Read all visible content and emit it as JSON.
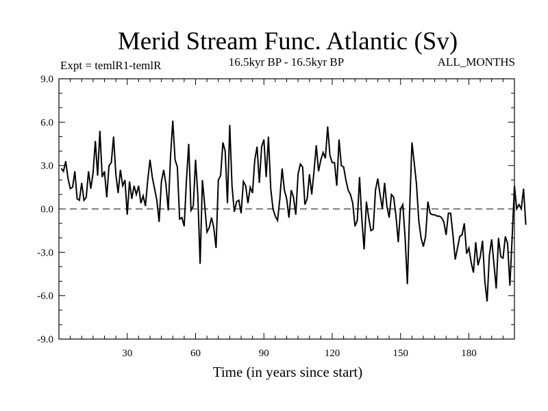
{
  "chart_data": {
    "type": "line",
    "title": "Merid Stream Func. Atlantic (Sv)",
    "subtitle": "16.5kyr BP - 16.5kyr BP",
    "left_label": "Expt = temlR1-temlR",
    "right_label": "ALL_MONTHS",
    "xlabel": "Time (in years since start)",
    "ylabel": "",
    "xlim": [
      0,
      200
    ],
    "ylim": [
      -9,
      9
    ],
    "x_ticks": [
      30,
      60,
      90,
      120,
      150,
      180
    ],
    "y_ticks": [
      "9.0",
      "6.0",
      "3.0",
      "0.0",
      "-3.0",
      "-6.0",
      "-9.0"
    ],
    "y_tick_values": [
      9,
      6,
      3,
      0,
      -3,
      -6,
      -9
    ],
    "zero_line": 0,
    "series": [
      {
        "name": "Merid Stream Func. Atlantic",
        "x_start": 1,
        "x_step": 1,
        "values": [
          2.8,
          2.6,
          3.3,
          2.1,
          1.4,
          1.5,
          2.6,
          0.7,
          0.6,
          1.8,
          0.6,
          0.8,
          2.6,
          1.4,
          2.5,
          4.7,
          2.3,
          5.4,
          2.2,
          2.6,
          0.8,
          3.0,
          3.2,
          5.0,
          2.4,
          1.1,
          2.7,
          1.6,
          2.0,
          -0.4,
          1.9,
          0.7,
          1.6,
          1.0,
          1.6,
          0.4,
          0.9,
          0.2,
          2.0,
          3.4,
          2.2,
          1.4,
          0.6,
          -0.9,
          1.9,
          2.7,
          1.7,
          -0.1,
          3.6,
          6.1,
          3.4,
          2.9,
          -0.7,
          -0.6,
          -1.2,
          2.0,
          4.5,
          -0.1,
          0.2,
          3.4,
          0.9,
          -3.8,
          2.0,
          0.3,
          -1.6,
          -1.3,
          -0.6,
          -1.3,
          -2.7,
          2.0,
          2.3,
          4.6,
          4.0,
          0.4,
          5.8,
          1.6,
          -0.2,
          0.5,
          0.6,
          -0.3,
          1.9,
          1.6,
          0.4,
          1.5,
          1.1,
          3.4,
          4.3,
          1.8,
          4.3,
          4.8,
          2.2,
          5.0,
          1.4,
          0.0,
          -0.5,
          -0.8,
          0.7,
          2.8,
          1.3,
          0.7,
          -0.6,
          1.3,
          0.8,
          -0.4,
          2.4,
          3.1,
          2.9,
          0.3,
          0.7,
          2.4,
          1.0,
          2.6,
          4.4,
          2.6,
          3.4,
          3.9,
          3.5,
          5.7,
          3.7,
          3.2,
          3.2,
          1.6,
          4.8,
          3.0,
          2.9,
          2.0,
          1.3,
          1.0,
          0.4,
          -1.2,
          -0.8,
          2.2,
          -0.7,
          -2.8,
          0.5,
          -0.6,
          -1.5,
          -1.4,
          1.3,
          2.1,
          1.0,
          0.0,
          1.8,
          0.2,
          -0.6,
          1.0,
          0.8,
          -0.5,
          -2.3,
          0.0,
          0.3,
          -2.0,
          -5.2,
          0.0,
          4.6,
          3.2,
          1.7,
          -0.8,
          -2.0,
          -2.6,
          -1.9,
          0.5,
          -0.3,
          -0.4,
          -0.4,
          -0.5,
          -0.5,
          -0.6,
          -0.9,
          -1.8,
          -0.3,
          -0.3,
          -1.8,
          -3.5,
          -2.7,
          -1.9,
          -1.8,
          -1.0,
          -3.1,
          -2.7,
          -3.7,
          -4.4,
          -2.3,
          -3.9,
          -3.3,
          -2.2,
          -5.0,
          -6.4,
          -3.2,
          -2.1,
          -3.8,
          -5.5,
          -2.0,
          -3.3,
          -3.4,
          -1.9,
          -2.4,
          -5.3,
          -2.0,
          1.6,
          0.0,
          0.3,
          0.0,
          1.4,
          -1.1
        ]
      }
    ]
  }
}
